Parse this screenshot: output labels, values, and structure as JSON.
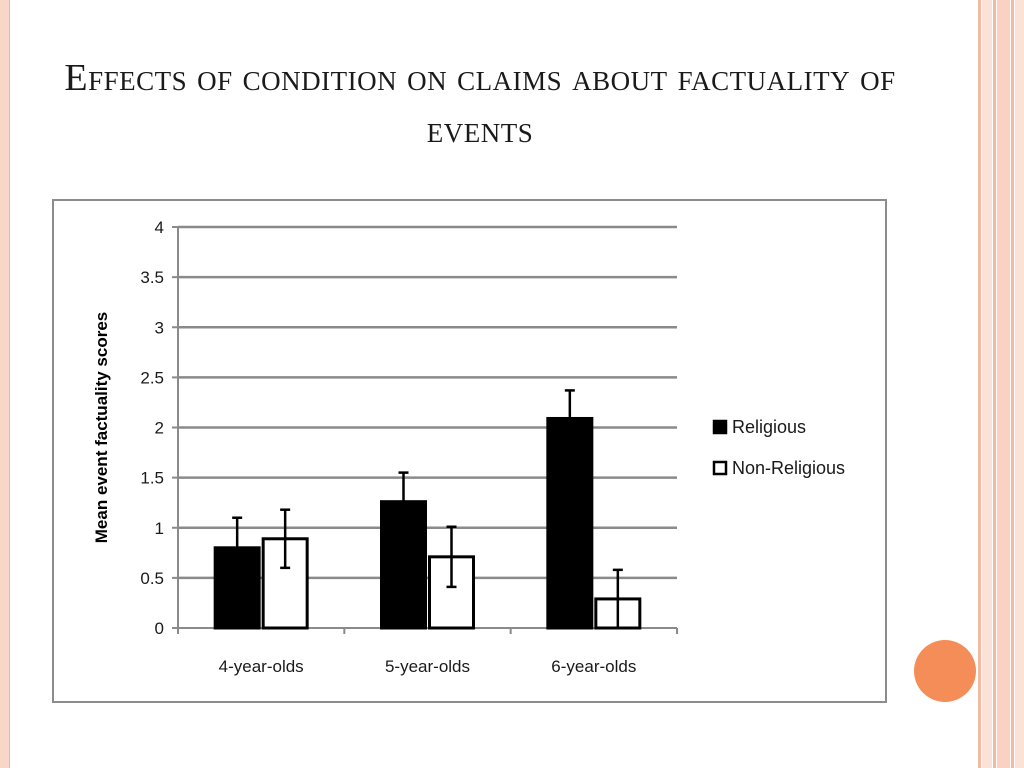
{
  "slide": {
    "title": "Effects of condition on claims about factuality of events"
  },
  "colors": {
    "frame": "#f8d6c8",
    "accent_orb": "#f58d59",
    "religious": "#000000",
    "non_religious": "#ffffff"
  },
  "chart_data": {
    "type": "bar",
    "title": "",
    "xlabel": "",
    "ylabel": "Mean event factuality scores",
    "ylim": [
      0,
      4
    ],
    "yticks": [
      0,
      0.5,
      1,
      1.5,
      2,
      2.5,
      3,
      3.5,
      4
    ],
    "ytick_labels": [
      "0",
      "0.5",
      "1",
      "1.5",
      "2",
      "2.5",
      "3",
      "3.5",
      "4"
    ],
    "grid": true,
    "legend_position": "right",
    "categories": [
      "4-year-olds",
      "5-year-olds",
      "6-year-olds"
    ],
    "series": [
      {
        "name": "Religious",
        "color": "#000000",
        "values": [
          0.8,
          1.26,
          2.09
        ],
        "errors": [
          0.3,
          0.29,
          0.28
        ]
      },
      {
        "name": "Non-Religious",
        "color": "#ffffff",
        "values": [
          0.89,
          0.71,
          0.29
        ],
        "errors": [
          0.29,
          0.3,
          0.29
        ]
      }
    ]
  }
}
